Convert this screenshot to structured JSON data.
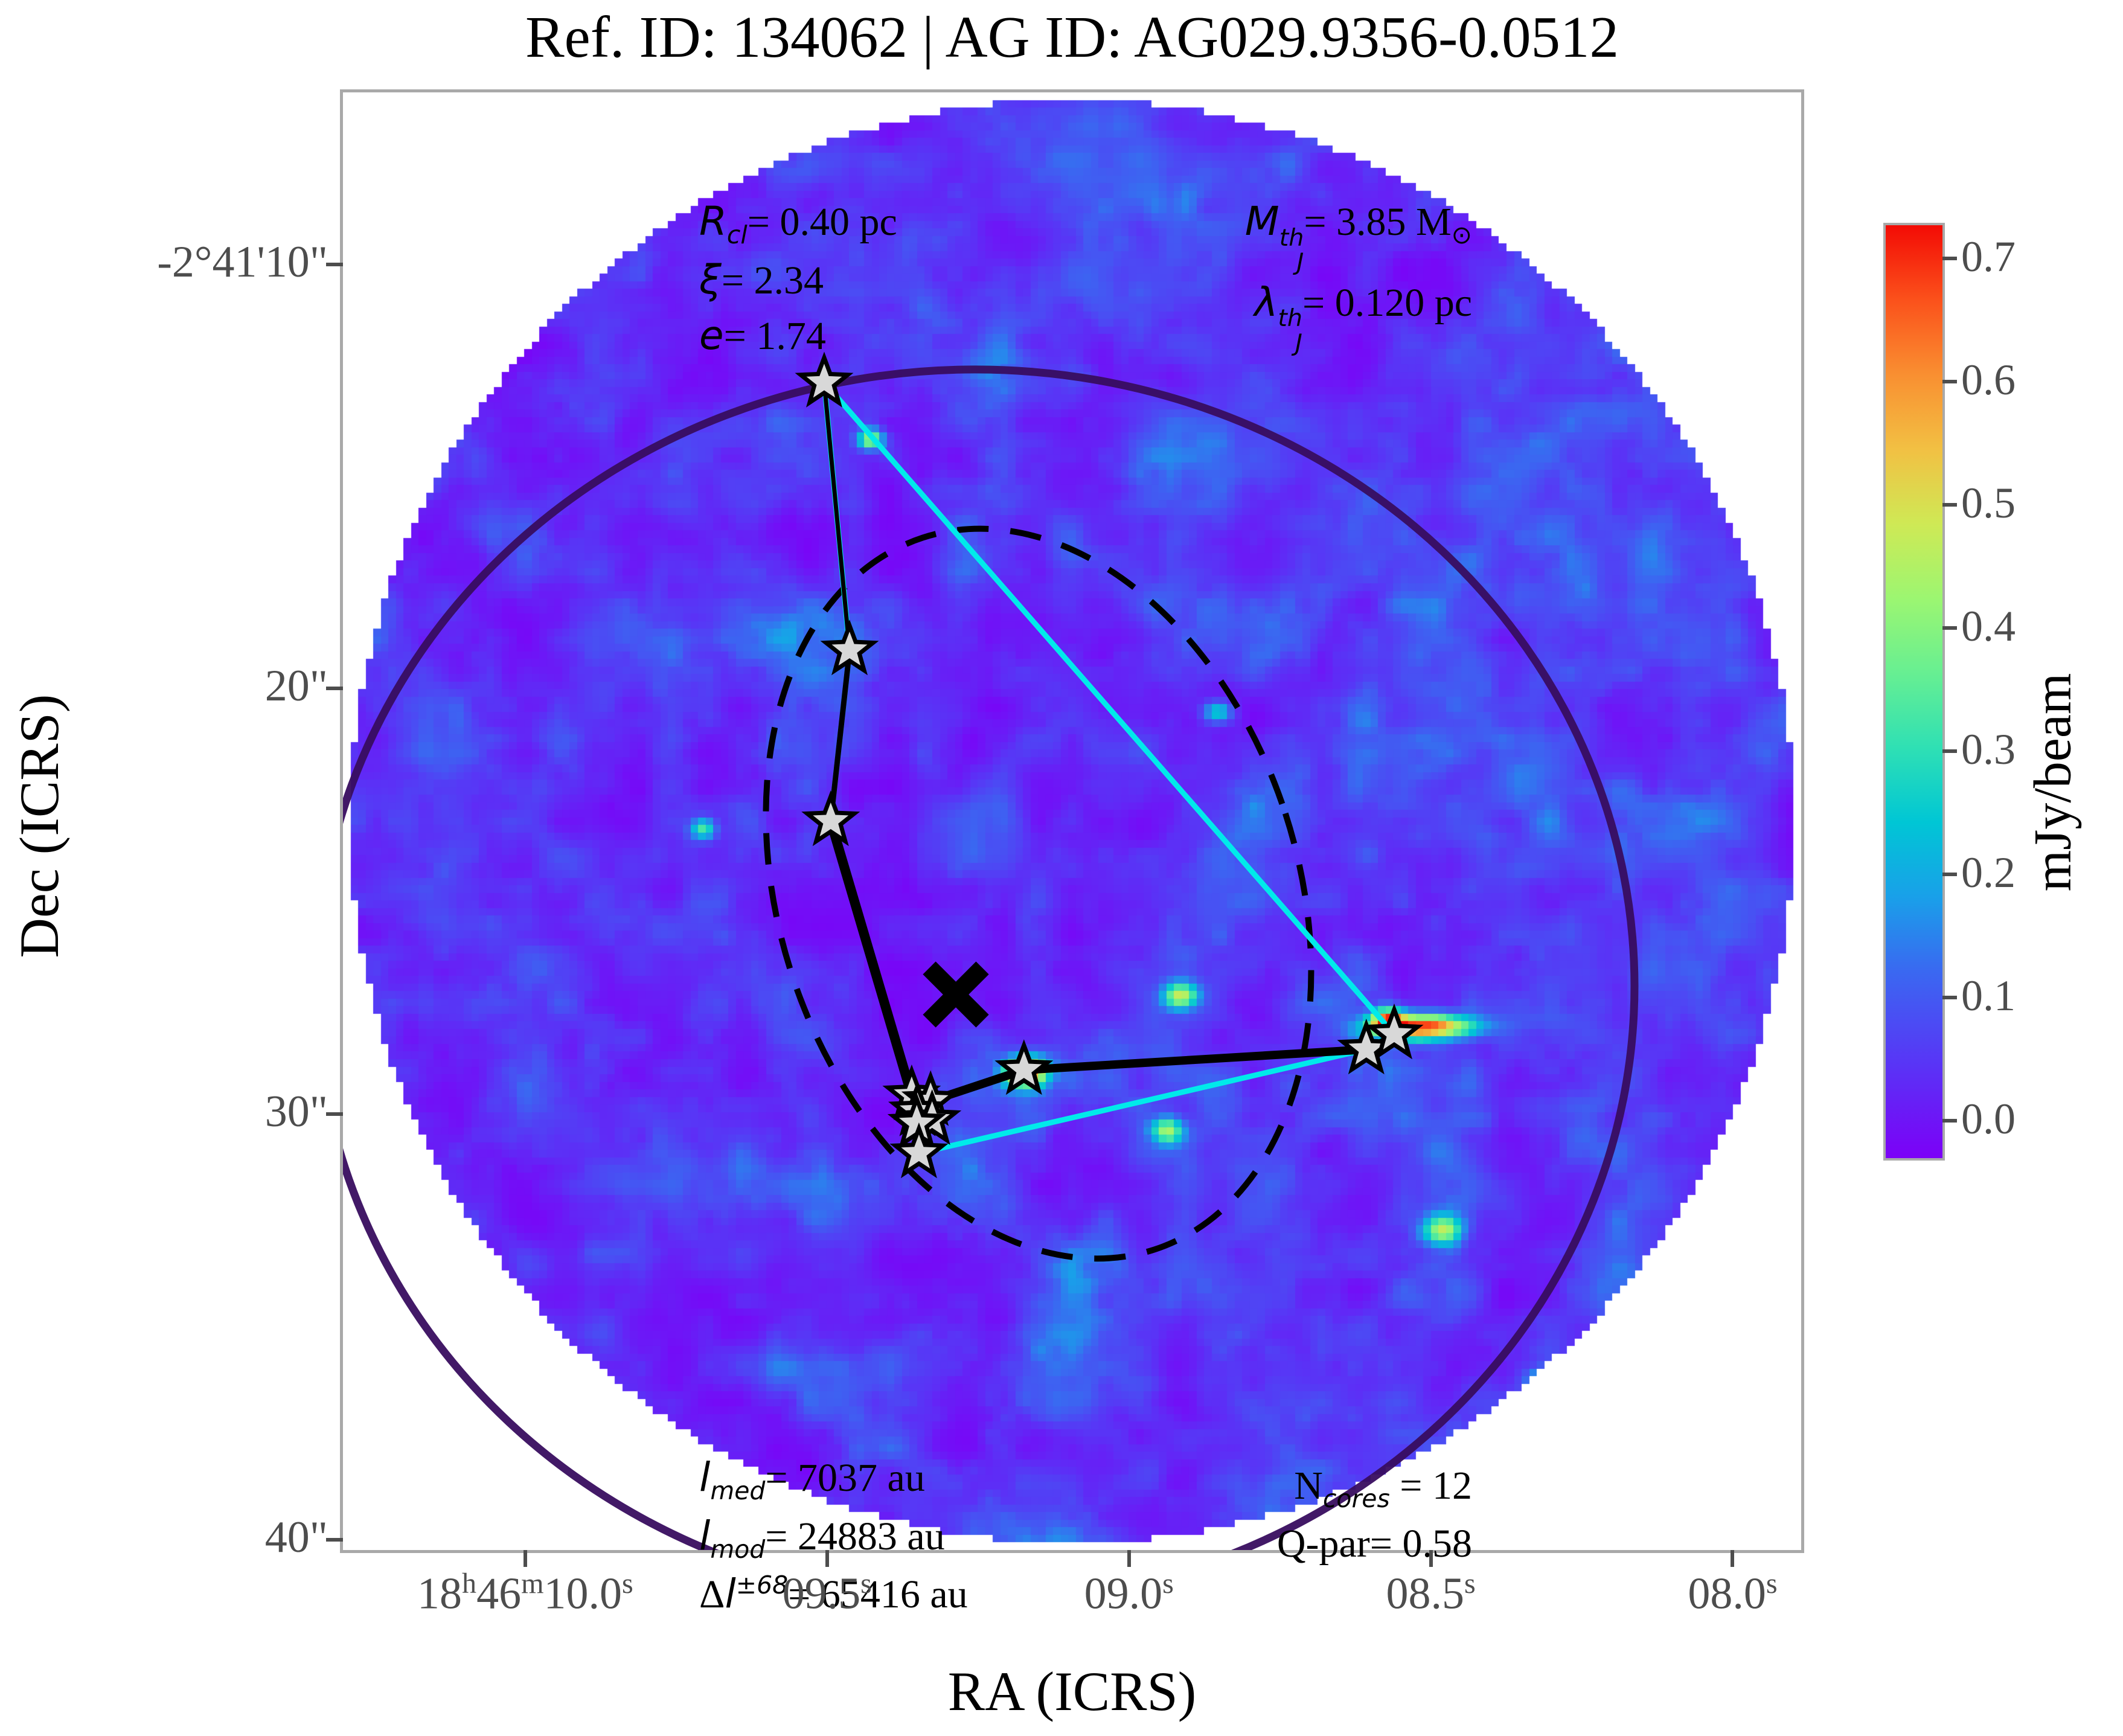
{
  "chart_data": {
    "type": "heatmap",
    "title": "Ref. ID: 134062 | AG ID: AG029.9356-0.0512",
    "xlabel": "RA (ICRS)",
    "ylabel": "Dec (ICRS)",
    "colorbar_label": "mJy/beam",
    "x_ticks": [
      {
        "pos": 0.125,
        "parts": [
          {
            "t": "18",
            "sup": "h"
          },
          {
            "t": "46",
            "sup": "m"
          },
          {
            "t": "10.0",
            "sup": "s"
          }
        ]
      },
      {
        "pos": 0.332,
        "parts": [
          {
            "t": "09.5",
            "sup": "s"
          }
        ]
      },
      {
        "pos": 0.539,
        "parts": [
          {
            "t": "09.0",
            "sup": "s"
          }
        ]
      },
      {
        "pos": 0.746,
        "parts": [
          {
            "t": "08.5",
            "sup": "s"
          }
        ]
      },
      {
        "pos": 0.953,
        "parts": [
          {
            "t": "08.0",
            "sup": "s"
          }
        ]
      }
    ],
    "y_ticks": [
      {
        "pos": 0.118,
        "label": "-2°41'10\""
      },
      {
        "pos": 0.409,
        "label": "20\""
      },
      {
        "pos": 0.701,
        "label": "30\""
      },
      {
        "pos": 0.993,
        "label": "40\""
      }
    ],
    "colorbar": {
      "ticks": [
        {
          "v": "0.7",
          "pos": 0.0356
        },
        {
          "v": "0.6",
          "pos": 0.1676
        },
        {
          "v": "0.5",
          "pos": 0.2997
        },
        {
          "v": "0.4",
          "pos": 0.4317
        },
        {
          "v": "0.3",
          "pos": 0.5638
        },
        {
          "v": "0.2",
          "pos": 0.6958
        },
        {
          "v": "0.1",
          "pos": 0.8279
        },
        {
          "v": "0.0",
          "pos": 0.9599
        }
      ],
      "gradient_stops": [
        {
          "t": 0.0,
          "c": "#7c00f7"
        },
        {
          "t": 0.1,
          "c": "#5934f6"
        },
        {
          "t": 0.2,
          "c": "#3a68f1"
        },
        {
          "t": 0.28,
          "c": "#19a0e9"
        },
        {
          "t": 0.36,
          "c": "#00c6d5"
        },
        {
          "t": 0.44,
          "c": "#2fe0b4"
        },
        {
          "t": 0.52,
          "c": "#67ef92"
        },
        {
          "t": 0.6,
          "c": "#9cf671"
        },
        {
          "t": 0.68,
          "c": "#cfe955"
        },
        {
          "t": 0.76,
          "c": "#f2c043"
        },
        {
          "t": 0.84,
          "c": "#f98f31"
        },
        {
          "t": 0.92,
          "c": "#fb511b"
        },
        {
          "t": 1.0,
          "c": "#f30b05"
        }
      ]
    },
    "annotations": {
      "top_left": {
        "l1": {
          "sym": "R",
          "sub": "cl",
          "rest": "= 0.40 pc"
        },
        "l2": {
          "sym": "ξ",
          "rest": "= 2.34"
        },
        "l3": {
          "sym": "e",
          "rest": "= 1.74"
        }
      },
      "top_right": {
        "l1": {
          "sym": "M",
          "sup": "th",
          "sub": "J",
          "rest": "= 3.85 M",
          "tail_sub": "⊙"
        },
        "l2": {
          "sym": "λ",
          "sup": "th",
          "sub": "J",
          "rest": "= 0.120 pc"
        }
      },
      "bottom_left": {
        "l1": {
          "sym": "l",
          "sub": "med",
          "rest": "= 7037 au"
        },
        "l2": {
          "sym": "l",
          "sub": "mod",
          "rest": "= 24883 au"
        },
        "l3": {
          "sym": "Δ",
          "sym2": "l",
          "sup": "±68",
          "rest": "= 65416 au"
        }
      },
      "bottom_right": {
        "l1": {
          "sym": "N",
          "sub": "cores",
          "rest": " = 12"
        },
        "l2": {
          "sym": "Q-par",
          "rest": "= 0.58"
        }
      }
    },
    "cores": [
      [
        0.33,
        0.199
      ],
      [
        0.3474,
        0.3828
      ],
      [
        0.3345,
        0.5
      ],
      [
        0.39,
        0.688
      ],
      [
        0.403,
        0.692
      ],
      [
        0.394,
        0.699
      ],
      [
        0.404,
        0.705
      ],
      [
        0.3935,
        0.7075
      ],
      [
        0.395,
        0.7278
      ],
      [
        0.467,
        0.6707
      ],
      [
        0.7018,
        0.6566
      ],
      [
        0.7209,
        0.6462
      ]
    ],
    "star_style": {
      "fill": "#d8d8d8",
      "stroke": "#000000",
      "stroke_width": 7,
      "radius": 41
    },
    "overlays": {
      "fov_circle": {
        "cx": 0.5,
        "cy": 0.5,
        "r": 0.495
      },
      "cluster_radius_ellipse": {
        "cx": 0.4335,
        "cy": 0.6131,
        "rx": 0.4522,
        "ry": 0.423,
        "color": "#380d5f",
        "width": 13
      },
      "dashed_ellipse": {
        "cx": 0.477,
        "cy": 0.5497,
        "rx": 0.178,
        "ry": 0.2568,
        "rotate": -18,
        "color": "#000000",
        "width": 10,
        "dash": "52 36"
      },
      "hull": {
        "color": "#00eaea",
        "width": 9,
        "points": [
          0,
          1,
          2,
          3,
          8,
          10,
          11
        ]
      },
      "mst_edges": [
        [
          0,
          1,
          7
        ],
        [
          1,
          2,
          9
        ],
        [
          2,
          3,
          16
        ],
        [
          3,
          4,
          5
        ],
        [
          4,
          5,
          5
        ],
        [
          5,
          6,
          5
        ],
        [
          6,
          7,
          5
        ],
        [
          7,
          8,
          11
        ],
        [
          4,
          9,
          14
        ],
        [
          9,
          10,
          14
        ],
        [
          10,
          11,
          9
        ]
      ],
      "center_x_marker": {
        "x": 0.4203,
        "y": 0.6189,
        "size": 44,
        "color": "#000000"
      }
    },
    "noise": {
      "seed": 11,
      "grid": 193,
      "vmin": -0.03,
      "vmax": 0.73,
      "base": -0.03,
      "amp": 0.24,
      "gamma": 1.6
    },
    "hotspots": [
      {
        "x": 0.468,
        "y": 0.672,
        "a": 0.62,
        "sx": 0.01,
        "sy": 0.007
      },
      {
        "x": 0.742,
        "y": 0.641,
        "a": 0.66,
        "sx": 0.024,
        "sy": 0.006
      },
      {
        "x": 0.716,
        "y": 0.637,
        "a": 0.45,
        "sx": 0.008,
        "sy": 0.006
      },
      {
        "x": 0.362,
        "y": 0.238,
        "a": 0.42,
        "sx": 0.006,
        "sy": 0.005
      },
      {
        "x": 0.575,
        "y": 0.62,
        "a": 0.4,
        "sx": 0.008,
        "sy": 0.006
      },
      {
        "x": 0.565,
        "y": 0.712,
        "a": 0.36,
        "sx": 0.008,
        "sy": 0.006
      },
      {
        "x": 0.755,
        "y": 0.78,
        "a": 0.34,
        "sx": 0.009,
        "sy": 0.007
      },
      {
        "x": 0.824,
        "y": 0.884,
        "a": 0.3,
        "sx": 0.008,
        "sy": 0.006
      },
      {
        "x": 0.247,
        "y": 0.505,
        "a": 0.3,
        "sx": 0.006,
        "sy": 0.005
      },
      {
        "x": 0.6,
        "y": 0.425,
        "a": 0.26,
        "sx": 0.007,
        "sy": 0.005
      }
    ]
  }
}
